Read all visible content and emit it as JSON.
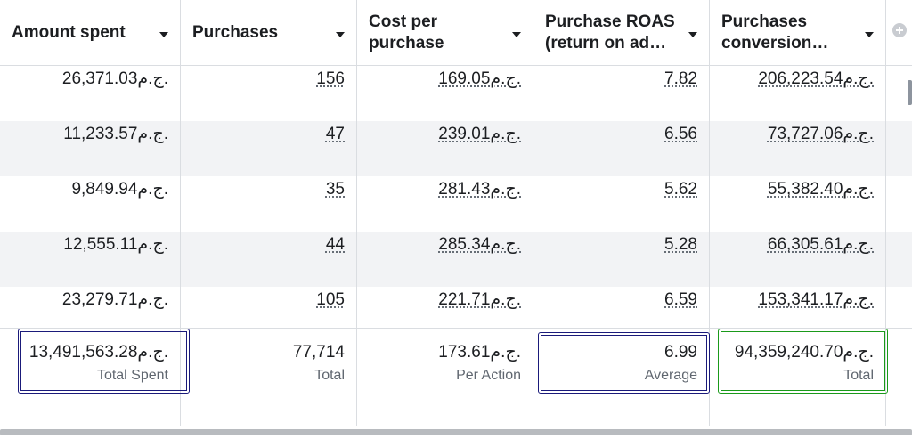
{
  "currency": "ج.م.",
  "columns": [
    {
      "label": "Amount spent"
    },
    {
      "label": "Purchases"
    },
    {
      "label": "Cost per purchase"
    },
    {
      "label": "Purchase ROAS (return on ad…"
    },
    {
      "label": "Purchases conversion…"
    }
  ],
  "rows": [
    {
      "amount_spent": "26,371.03",
      "purchases": "156",
      "cost_per_purchase": "169.05",
      "roas": "7.82",
      "conversion_value": "206,223.54"
    },
    {
      "amount_spent": "11,233.57",
      "purchases": "47",
      "cost_per_purchase": "239.01",
      "roas": "6.56",
      "conversion_value": "73,727.06"
    },
    {
      "amount_spent": "9,849.94",
      "purchases": "35",
      "cost_per_purchase": "281.43",
      "roas": "5.62",
      "conversion_value": "55,382.40"
    },
    {
      "amount_spent": "12,555.11",
      "purchases": "44",
      "cost_per_purchase": "285.34",
      "roas": "5.28",
      "conversion_value": "66,305.61"
    },
    {
      "amount_spent": "23,279.71",
      "purchases": "105",
      "cost_per_purchase": "221.71",
      "roas": "6.59",
      "conversion_value": "153,341.17"
    }
  ],
  "totals": {
    "amount_spent": {
      "value": "13,491,563.28",
      "label": "Total Spent"
    },
    "purchases": {
      "value": "77,714",
      "label": "Total"
    },
    "cost_per_purchase": {
      "value": "173.61",
      "label": "Per Action"
    },
    "roas": {
      "value": "6.99",
      "label": "Average"
    },
    "conversion_value": {
      "value": "94,359,240.70",
      "label": "Total"
    }
  },
  "highlight_colors": {
    "blue": "#1a1a7a",
    "green": "#1a9a1a"
  },
  "icons": {
    "add_column": "plus-circle-icon",
    "sort": "caret-down-icon"
  }
}
